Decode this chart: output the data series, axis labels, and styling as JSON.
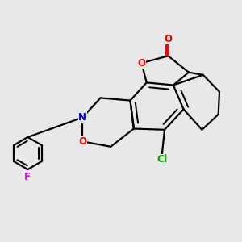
{
  "background_color": "#e8e8e8",
  "bond_color": "#000000",
  "bond_width": 1.6,
  "atom_colors": {
    "O": "#ff0000",
    "N": "#0000cc",
    "F": "#ee00ee",
    "Cl": "#00aa00",
    "C": "#000000"
  },
  "font_size": 8.5,
  "figsize": [
    3.0,
    3.0
  ],
  "dpi": 100
}
